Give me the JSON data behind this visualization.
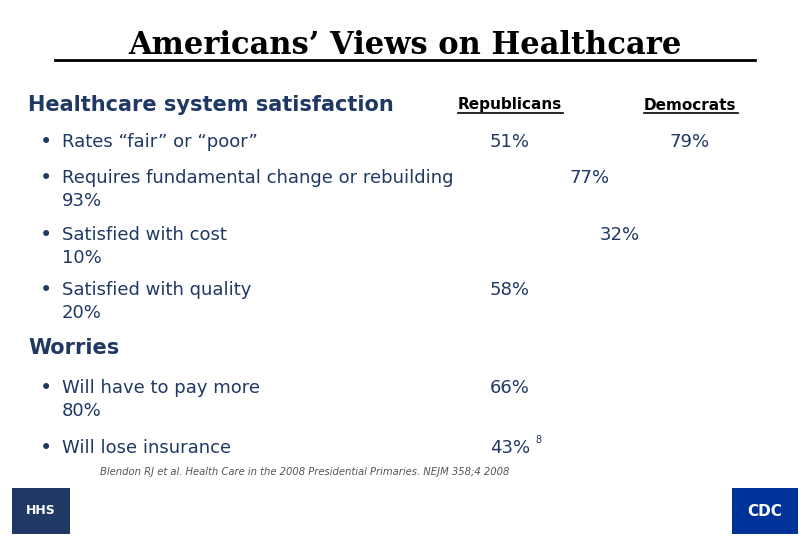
{
  "title": "Americans’ Views on Healthcare",
  "bg_color": "#ffffff",
  "title_color": "#000000",
  "text_color": "#1f3864",
  "section1_header": "Healthcare system satisfaction",
  "col1_header": "Republicans",
  "col2_header": "Democrats",
  "section2_header": "Worries",
  "footnote": "Blendon RJ et al. Health Care in the 2008 Presidential Primaries. NEJM 358;4 2008"
}
